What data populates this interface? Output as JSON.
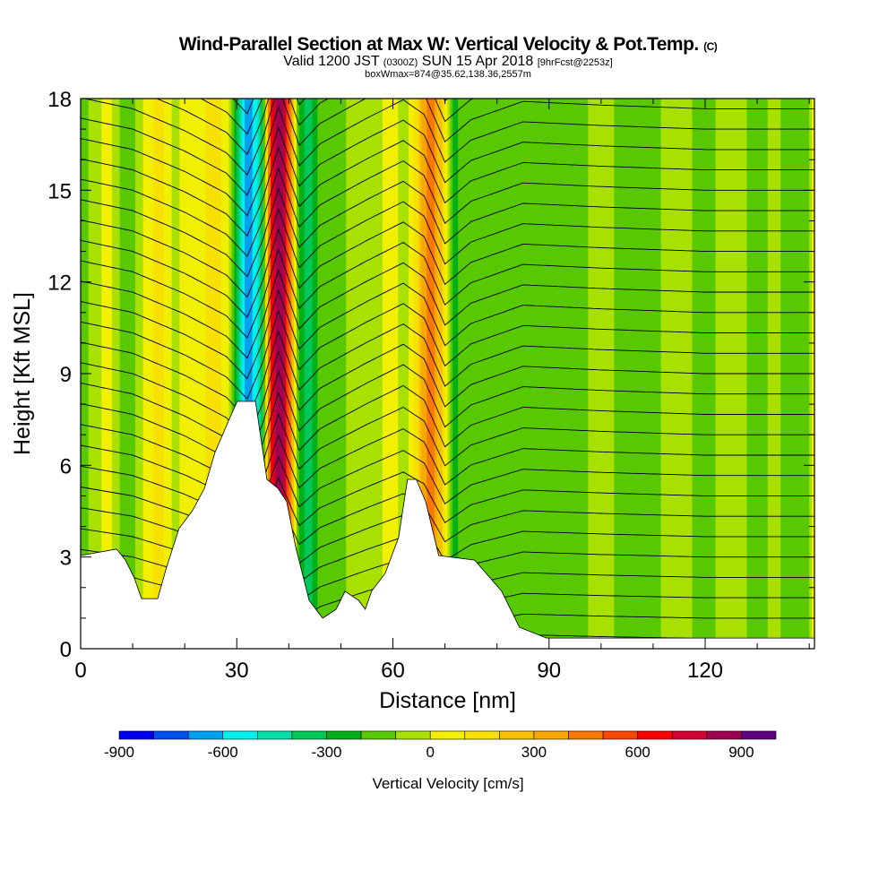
{
  "chart_data": {
    "type": "heatmap",
    "title": "Wind-Parallel Section at Max W: Vertical Velocity & Pot.Temp.",
    "title_suffix": "(C)",
    "subtitle_main_a": "Valid 1200 JST",
    "subtitle_utc": "(0300Z)",
    "subtitle_main_b": "SUN 15 Apr 2018",
    "subtitle_fcst": "[9hrFcst@2253z]",
    "subtitle2": "boxWmax=874@35.62,138.36,2557m",
    "xlabel": "Distance [nm]",
    "ylabel": "Height [Kft MSL]",
    "xlim": [
      0,
      141
    ],
    "ylim": [
      0,
      18
    ],
    "xticks": [
      "0",
      "30",
      "60",
      "90",
      "120"
    ],
    "xtick_values": [
      0,
      30,
      60,
      90,
      120
    ],
    "yticks": [
      "0",
      "3",
      "6",
      "9",
      "12",
      "15",
      "18"
    ],
    "ytick_values": [
      0,
      3,
      6,
      9,
      12,
      15,
      18
    ],
    "colorbar": {
      "label": "Vertical Velocity [cm/s]",
      "edges": [
        -900,
        -800,
        -700,
        -600,
        -500,
        -400,
        -300,
        -200,
        -100,
        0,
        100,
        200,
        300,
        400,
        500,
        600,
        700,
        800,
        900,
        1000
      ],
      "colors": [
        "#0000f0",
        "#0050f0",
        "#00a0f0",
        "#00f0f0",
        "#00e0a8",
        "#00c858",
        "#00b018",
        "#58c800",
        "#a8e000",
        "#f0f000",
        "#f8e000",
        "#f8c000",
        "#f8a800",
        "#f87800",
        "#f84800",
        "#f80000",
        "#d00030",
        "#a00050",
        "#600080"
      ],
      "tick_labels": [
        "-900",
        "-600",
        "-300",
        "0",
        "300",
        "600",
        "900"
      ],
      "tick_values": [
        -900,
        -600,
        -300,
        0,
        300,
        600,
        900
      ]
    },
    "w_profile": {
      "x": [
        0,
        3,
        5,
        8,
        10,
        13,
        15,
        18,
        20,
        23,
        25,
        28,
        30,
        31,
        32,
        33,
        34,
        35,
        36,
        37,
        38,
        39,
        40,
        41,
        42,
        43,
        44,
        45,
        46,
        48,
        50,
        53,
        56,
        60,
        62,
        64,
        65,
        66,
        67,
        68,
        69,
        70,
        71,
        72,
        73,
        75,
        78,
        80,
        85,
        90,
        95,
        100,
        105,
        110,
        115,
        120,
        125,
        130,
        133,
        136,
        139,
        141
      ],
      "w": [
        -150,
        -50,
        50,
        -120,
        -150,
        60,
        150,
        -50,
        80,
        50,
        150,
        80,
        -300,
        -500,
        -650,
        -600,
        -500,
        -300,
        300,
        700,
        850,
        800,
        500,
        100,
        -200,
        -300,
        -320,
        -250,
        -150,
        -100,
        -120,
        -50,
        -50,
        50,
        -50,
        80,
        200,
        350,
        450,
        400,
        250,
        50,
        -150,
        -250,
        -150,
        -100,
        -120,
        -150,
        -130,
        -100,
        -150,
        -50,
        -150,
        -120,
        -50,
        -150,
        -30,
        -150,
        -80,
        -120,
        -200,
        50
      ]
    },
    "terrain": {
      "x": [
        0,
        6.9,
        8.6,
        10.3,
        11.7,
        14.8,
        16.4,
        18.9,
        21.5,
        23.8,
        25.8,
        28.4,
        30.1,
        33.6,
        34.4,
        35.8,
        37.9,
        39.6,
        41.3,
        43.9,
        46.5,
        49.1,
        50.8,
        53.4,
        54.7,
        55.9,
        58.5,
        61.1,
        62.8,
        64.5,
        66.3,
        68.8,
        75.7,
        80.9,
        84.3,
        89.5,
        141
      ],
      "z": [
        3.05,
        3.26,
        2.9,
        2.32,
        1.64,
        1.64,
        2.61,
        3.93,
        4.52,
        5.25,
        6.42,
        7.45,
        8.09,
        8.09,
        7.16,
        5.54,
        5.25,
        4.81,
        3.34,
        1.58,
        1.0,
        1.29,
        1.88,
        1.58,
        1.29,
        1.88,
        2.46,
        3.64,
        5.54,
        5.54,
        4.81,
        3.05,
        2.9,
        1.88,
        0.7,
        0.35,
        0.35
      ]
    },
    "theta_contours": {
      "count": 30,
      "displacement_x": [
        0,
        10,
        20,
        28,
        32,
        35,
        38,
        42,
        46,
        55,
        62,
        66,
        70,
        75,
        85,
        100,
        120,
        141
      ],
      "displacement_kft": [
        0.3,
        0.0,
        -0.6,
        -1.2,
        -1.8,
        -0.8,
        0.6,
        -1.0,
        -0.4,
        0.3,
        0.8,
        0.4,
        -0.9,
        -0.3,
        0.2,
        0.1,
        0.0,
        0.0
      ]
    }
  }
}
